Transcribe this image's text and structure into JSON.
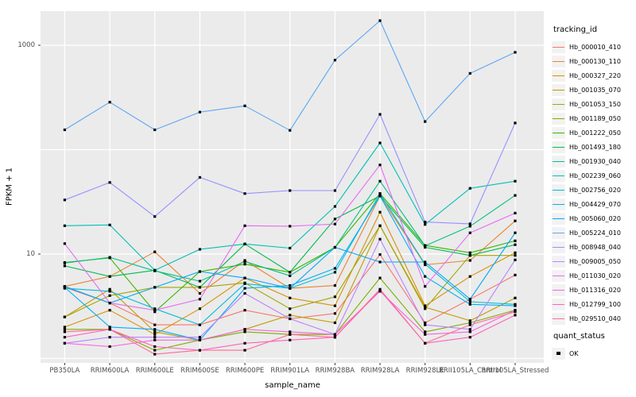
{
  "legend": {
    "title": "tracking_id",
    "quant_title": "quant_status",
    "quant_item": "OK"
  },
  "chart_data": {
    "type": "line",
    "title": "",
    "xlabel": "sample_name",
    "ylabel": "FPKM + 1",
    "y_scale": "log10",
    "ylim": [
      1,
      2200
    ],
    "grid": true,
    "gridlines_y": [
      1,
      10,
      100,
      1000
    ],
    "yticks_labeled": [
      {
        "value": 10,
        "label": "10"
      },
      {
        "value": 1000,
        "label": "1000"
      }
    ],
    "legend_position": "right",
    "panel_color": "#EBEBEB",
    "grid_color": "#FFFFFF",
    "point_color": "#000000",
    "categories": [
      "PB350LA",
      "RRIM600LA",
      "RRIM600LE",
      "RRIM600SE",
      "RRIM600PE",
      "RRIM901LA",
      "RRIM928BA",
      "RRIM928LA",
      "RRIM928LE",
      "RRII105LA_Control",
      "RRII105LA_Stressed"
    ],
    "series": [
      {
        "name": "Hb_000010_410",
        "color": "#F8766D",
        "values": [
          4.8,
          3.4,
          2.1,
          2.1,
          2.9,
          2.4,
          2.7,
          9.9,
          2.2,
          3.7,
          6.3
        ]
      },
      {
        "name": "Hb_000130_110",
        "color": "#EA8331",
        "values": [
          4.9,
          6.1,
          10.5,
          4.2,
          8.7,
          4.7,
          5.0,
          36,
          7.9,
          8.7,
          20.8
        ]
      },
      {
        "name": "Hb_000327_220",
        "color": "#D89000",
        "values": [
          2.0,
          2.9,
          1.7,
          3.0,
          5.9,
          3.8,
          3.2,
          25.2,
          3.2,
          6.1,
          10.3
        ]
      },
      {
        "name": "Hb_001035_070",
        "color": "#C09B00",
        "values": [
          2.5,
          4.6,
          1.8,
          1.5,
          1.9,
          2.6,
          2.2,
          18.7,
          3.1,
          2.3,
          3.8
        ]
      },
      {
        "name": "Hb_001053_150",
        "color": "#A3A500",
        "values": [
          2.5,
          4.0,
          4.8,
          4.8,
          5.3,
          3.0,
          3.9,
          18.7,
          3.0,
          9.7,
          9.7
        ]
      },
      {
        "name": "Hb_001189_050",
        "color": "#7CAE00",
        "values": [
          1.9,
          1.9,
          1.2,
          1.5,
          1.8,
          1.7,
          1.7,
          5.9,
          1.8,
          2.2,
          2.9
        ]
      },
      {
        "name": "Hb_001222_050",
        "color": "#39B600",
        "values": [
          8.3,
          9.2,
          2.8,
          6.8,
          8.0,
          6.7,
          11.6,
          38,
          12.1,
          10.3,
          13.4
        ]
      },
      {
        "name": "Hb_001493_180",
        "color": "#00BB4E",
        "values": [
          7.7,
          6.1,
          7.0,
          4.8,
          12.5,
          6.7,
          21.7,
          36,
          11.6,
          9.7,
          12.3
        ]
      },
      {
        "name": "Hb_001930_040",
        "color": "#00C087",
        "values": [
          8.2,
          9.3,
          6.9,
          5.5,
          8.5,
          6.2,
          11.6,
          49.9,
          12.0,
          18.5,
          36.5
        ]
      },
      {
        "name": "Hb_002239_060",
        "color": "#00C0B4",
        "values": [
          18.7,
          19.0,
          7.0,
          11.1,
          12.5,
          11.4,
          28.6,
          116,
          19.2,
          42.6,
          49.9
        ]
      },
      {
        "name": "Hb_002756_020",
        "color": "#00BDD8",
        "values": [
          4.7,
          4.4,
          3.0,
          2.1,
          5.2,
          4.7,
          6.7,
          38,
          8.0,
          3.5,
          3.3
        ]
      },
      {
        "name": "Hb_004429_070",
        "color": "#00B0F6",
        "values": [
          4.8,
          2.0,
          1.9,
          1.5,
          4.7,
          5.0,
          7.3,
          36,
          6.1,
          3.3,
          3.2
        ]
      },
      {
        "name": "Hb_005060_020",
        "color": "#00A5FF",
        "values": [
          4.9,
          3.4,
          4.8,
          6.8,
          5.9,
          4.7,
          11.6,
          8.4,
          8.4,
          3.7,
          16.0
        ]
      },
      {
        "name": "Hb_005224_010",
        "color": "#5CA7F2",
        "values": [
          155,
          285,
          155,
          229,
          263,
          153,
          721,
          1722,
          186,
          538,
          855
        ]
      },
      {
        "name": "Hb_008948_040",
        "color": "#9590FF",
        "values": [
          33,
          48.5,
          22.9,
          54.3,
          38,
          40.6,
          40.6,
          218,
          20.3,
          19.5,
          180
        ]
      },
      {
        "name": "Hb_009005_050",
        "color": "#BC81FF",
        "values": [
          1.4,
          1.6,
          1.6,
          1.6,
          4.2,
          2.4,
          1.7,
          13.9,
          2.1,
          1.9,
          8.8
        ]
      },
      {
        "name": "Hb_011030_020",
        "color": "#E76BF3",
        "values": [
          12.6,
          3.4,
          2.9,
          3.7,
          18.7,
          18.5,
          19.4,
          71.4,
          4.9,
          16.0,
          24.7
        ]
      },
      {
        "name": "Hb_011316_020",
        "color": "#F763E0",
        "values": [
          1.4,
          1.3,
          1.5,
          1.5,
          1.9,
          1.8,
          1.7,
          4.4,
          1.7,
          1.8,
          2.9
        ]
      },
      {
        "name": "Hb_012799_100",
        "color": "#FF62BC",
        "values": [
          1.6,
          1.9,
          1.3,
          1.2,
          1.4,
          1.5,
          1.6,
          4.5,
          1.4,
          1.6,
          2.6
        ]
      },
      {
        "name": "Hb_029510_040",
        "color": "#FF6A98",
        "values": [
          1.8,
          1.9,
          1.1,
          1.2,
          1.2,
          1.7,
          1.6,
          4.6,
          1.4,
          2.1,
          2.8
        ]
      }
    ]
  }
}
